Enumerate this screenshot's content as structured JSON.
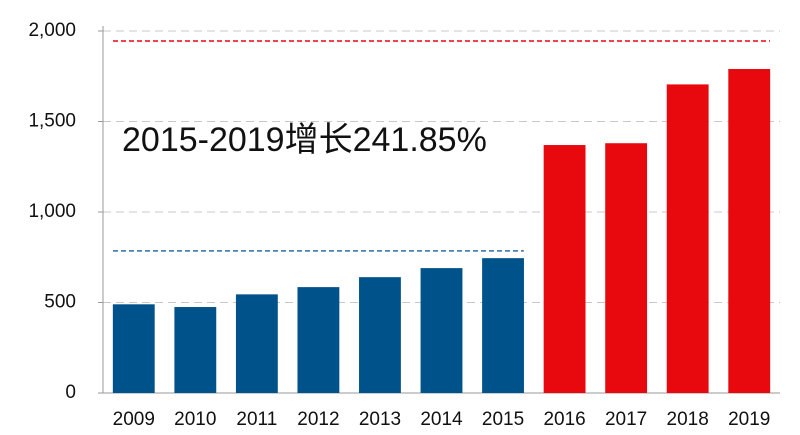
{
  "chart_data": {
    "type": "bar",
    "categories": [
      "2009",
      "2010",
      "2011",
      "2012",
      "2013",
      "2014",
      "2015",
      "2016",
      "2017",
      "2018",
      "2019"
    ],
    "values": [
      490,
      475,
      545,
      585,
      640,
      690,
      745,
      1370,
      1380,
      1705,
      1790
    ],
    "colors": [
      "#00538a",
      "#00538a",
      "#00538a",
      "#00538a",
      "#00538a",
      "#00538a",
      "#00538a",
      "#e8090f",
      "#e8090f",
      "#e8090f",
      "#e8090f"
    ],
    "ylim": [
      0,
      2000
    ],
    "yticks": [
      0,
      500,
      {
        "value": 1000,
        "label": "1,000"
      },
      {
        "value": 1500,
        "label": "1,500"
      },
      {
        "value": 2000,
        "label": "2,000"
      }
    ],
    "grid": true,
    "reference_lines": [
      {
        "value": 1945,
        "color": "#e8090f"
      },
      {
        "value": 785,
        "color": "#2e6fa0"
      }
    ],
    "annotation": {
      "text": "2015-2019增长241.85%",
      "color": "#d9141b"
    }
  }
}
